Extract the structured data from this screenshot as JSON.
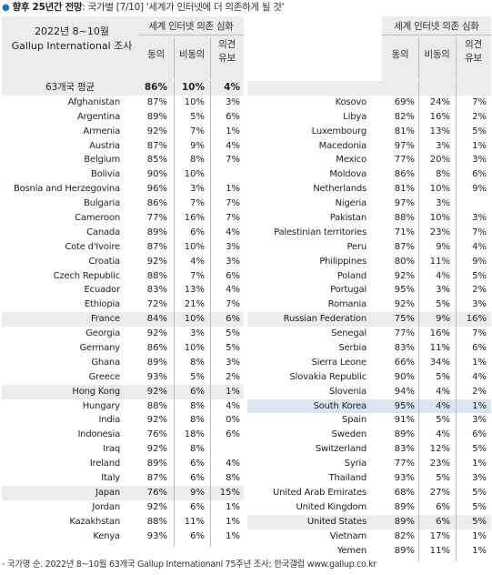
{
  "title": {
    "bullet": "●",
    "main": "향후 25년간 전망",
    "rest": ": 국가별 [7/10] '세계가 인터넷에 더 의존하게 될 것'"
  },
  "header": {
    "caption_line1": "2022년 8~10월",
    "caption_line2": "Gallup International 조사",
    "group": "세계 인터넷 의존 심화",
    "agree": "동의",
    "disagree": "비동의",
    "reserve_line1": "의견",
    "reserve_line2": "유보"
  },
  "average": {
    "name": "63개국 평균",
    "agree": "86%",
    "disagree": "10%",
    "reserve": "4%"
  },
  "left_rows": [
    {
      "name": "Afghanistan",
      "a": "87%",
      "d": "10%",
      "r": "3%"
    },
    {
      "name": "Argentina",
      "a": "89%",
      "d": "5%",
      "r": "6%"
    },
    {
      "name": "Armenia",
      "a": "92%",
      "d": "7%",
      "r": "1%"
    },
    {
      "name": "Austria",
      "a": "87%",
      "d": "9%",
      "r": "4%"
    },
    {
      "name": "Belgium",
      "a": "85%",
      "d": "8%",
      "r": "7%"
    },
    {
      "name": "Bolivia",
      "a": "90%",
      "d": "10%",
      "r": ""
    },
    {
      "name": "Bosnia and Herzegovina",
      "a": "96%",
      "d": "3%",
      "r": "1%"
    },
    {
      "name": "Bulgaria",
      "a": "86%",
      "d": "7%",
      "r": "7%"
    },
    {
      "name": "Cameroon",
      "a": "77%",
      "d": "16%",
      "r": "7%"
    },
    {
      "name": "Canada",
      "a": "89%",
      "d": "6%",
      "r": "4%"
    },
    {
      "name": "Cote d'Ivoire",
      "a": "87%",
      "d": "10%",
      "r": "3%"
    },
    {
      "name": "Croatia",
      "a": "92%",
      "d": "4%",
      "r": "3%"
    },
    {
      "name": "Czech Republic",
      "a": "88%",
      "d": "7%",
      "r": "6%"
    },
    {
      "name": "Ecuador",
      "a": "83%",
      "d": "13%",
      "r": "4%"
    },
    {
      "name": "Ethiopia",
      "a": "72%",
      "d": "21%",
      "r": "7%"
    },
    {
      "name": "France",
      "a": "84%",
      "d": "10%",
      "r": "6%"
    },
    {
      "name": "Georgia",
      "a": "92%",
      "d": "3%",
      "r": "5%"
    },
    {
      "name": "Germany",
      "a": "86%",
      "d": "10%",
      "r": "5%"
    },
    {
      "name": "Ghana",
      "a": "89%",
      "d": "8%",
      "r": "3%"
    },
    {
      "name": "Greece",
      "a": "93%",
      "d": "5%",
      "r": "2%"
    },
    {
      "name": "Hong Kong",
      "a": "92%",
      "d": "6%",
      "r": "1%"
    },
    {
      "name": "Hungary",
      "a": "88%",
      "d": "8%",
      "r": "4%"
    },
    {
      "name": "India",
      "a": "92%",
      "d": "8%",
      "r": "0%"
    },
    {
      "name": "Indonesia",
      "a": "76%",
      "d": "18%",
      "r": "6%"
    },
    {
      "name": "Iraq",
      "a": "92%",
      "d": "8%",
      "r": ""
    },
    {
      "name": "Ireland",
      "a": "89%",
      "d": "6%",
      "r": "4%"
    },
    {
      "name": "Italy",
      "a": "87%",
      "d": "6%",
      "r": "8%"
    },
    {
      "name": "Japan",
      "a": "76%",
      "d": "9%",
      "r": "15%"
    },
    {
      "name": "Jordan",
      "a": "92%",
      "d": "6%",
      "r": "1%"
    },
    {
      "name": "Kazakhstan",
      "a": "88%",
      "d": "11%",
      "r": "1%"
    },
    {
      "name": "Kenya",
      "a": "93%",
      "d": "6%",
      "r": "1%"
    }
  ],
  "right_rows": [
    {
      "name": "Kosovo",
      "a": "69%",
      "d": "24%",
      "r": "7%"
    },
    {
      "name": "Libya",
      "a": "82%",
      "d": "16%",
      "r": "2%"
    },
    {
      "name": "Luxembourg",
      "a": "81%",
      "d": "13%",
      "r": "5%"
    },
    {
      "name": "Macedonia",
      "a": "97%",
      "d": "3%",
      "r": "1%"
    },
    {
      "name": "Mexico",
      "a": "77%",
      "d": "20%",
      "r": "3%"
    },
    {
      "name": "Moldova",
      "a": "86%",
      "d": "8%",
      "r": "6%"
    },
    {
      "name": "Netherlands",
      "a": "81%",
      "d": "10%",
      "r": "9%"
    },
    {
      "name": "Nigeria",
      "a": "97%",
      "d": "3%",
      "r": ""
    },
    {
      "name": "Pakistan",
      "a": "88%",
      "d": "10%",
      "r": "3%"
    },
    {
      "name": "Palestinian territories",
      "a": "71%",
      "d": "23%",
      "r": "7%"
    },
    {
      "name": "Peru",
      "a": "87%",
      "d": "9%",
      "r": "4%"
    },
    {
      "name": "Philippines",
      "a": "80%",
      "d": "11%",
      "r": "9%"
    },
    {
      "name": "Poland",
      "a": "92%",
      "d": "4%",
      "r": "5%"
    },
    {
      "name": "Portugal",
      "a": "95%",
      "d": "3%",
      "r": "2%"
    },
    {
      "name": "Romania",
      "a": "92%",
      "d": "5%",
      "r": "3%"
    },
    {
      "name": "Russian Federation",
      "a": "75%",
      "d": "9%",
      "r": "16%"
    },
    {
      "name": "Senegal",
      "a": "77%",
      "d": "16%",
      "r": "7%"
    },
    {
      "name": "Serbia",
      "a": "83%",
      "d": "11%",
      "r": "6%"
    },
    {
      "name": "Sierra Leone",
      "a": "66%",
      "d": "34%",
      "r": "1%"
    },
    {
      "name": "Slovakia Republic",
      "a": "90%",
      "d": "5%",
      "r": "4%"
    },
    {
      "name": "Slovenia",
      "a": "94%",
      "d": "4%",
      "r": "2%"
    },
    {
      "name": "South Korea",
      "a": "95%",
      "d": "4%",
      "r": "1%"
    },
    {
      "name": "Spain",
      "a": "91%",
      "d": "5%",
      "r": "3%"
    },
    {
      "name": "Sweden",
      "a": "89%",
      "d": "4%",
      "r": "6%"
    },
    {
      "name": "Switzerland",
      "a": "83%",
      "d": "12%",
      "r": "5%"
    },
    {
      "name": "Syria",
      "a": "77%",
      "d": "23%",
      "r": "1%"
    },
    {
      "name": "Thailand",
      "a": "93%",
      "d": "5%",
      "r": "3%"
    },
    {
      "name": "United Arab Emirates",
      "a": "68%",
      "d": "27%",
      "r": "5%"
    },
    {
      "name": "United Kingdom",
      "a": "89%",
      "d": "6%",
      "r": "5%"
    },
    {
      "name": "United States",
      "a": "89%",
      "d": "6%",
      "r": "5%"
    },
    {
      "name": "Vietnam",
      "a": "82%",
      "d": "17%",
      "r": "1%"
    },
    {
      "name": "Yemen",
      "a": "89%",
      "d": "11%",
      "r": "1%"
    }
  ],
  "footnote": "- 국가명 순. 2022년 8~10월 63개국 Gallup Internationanl 75주년 조사; 한국갤럽 www.gallup.co.kr",
  "colors": {
    "header_bg": "#ececec",
    "highlight_gray": "#ececec",
    "highlight_blue": "#dbe4ef",
    "bullet": "#1a73c8"
  }
}
